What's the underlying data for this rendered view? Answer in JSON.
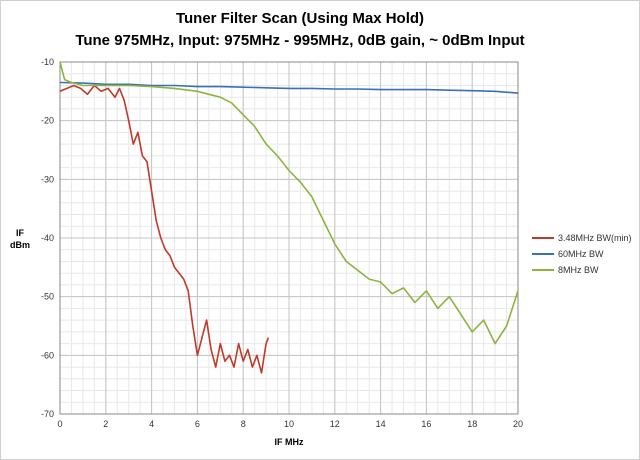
{
  "chart_data": {
    "type": "line",
    "title": "Tuner Filter Scan (Using Max Hold)",
    "subtitle": "Tune 975MHz, Input: 975MHz - 995MHz, 0dB gain, ~ 0dBm Input",
    "xlabel": "IF MHz",
    "ylabel_line1": "IF",
    "ylabel_line2": "dBm",
    "xlim": [
      0,
      20
    ],
    "ylim": [
      -70,
      -10
    ],
    "x_ticks": [
      0,
      2,
      4,
      6,
      8,
      10,
      12,
      14,
      16,
      18,
      20
    ],
    "y_ticks": [
      -10,
      -20,
      -30,
      -40,
      -50,
      -60,
      -70
    ],
    "grid": true,
    "legend_position": "right",
    "series": [
      {
        "name": "3.48MHz BW(min)",
        "color": "#c0392b",
        "x": [
          0,
          0.3,
          0.6,
          0.9,
          1.2,
          1.5,
          1.8,
          2.1,
          2.4,
          2.6,
          2.8,
          3.0,
          3.2,
          3.4,
          3.6,
          3.8,
          4.0,
          4.2,
          4.4,
          4.6,
          4.8,
          5.0,
          5.2,
          5.4,
          5.6,
          5.8,
          6.0,
          6.2,
          6.4,
          6.6,
          6.8,
          7.0,
          7.2,
          7.4,
          7.6,
          7.8,
          8.0,
          8.2,
          8.4,
          8.6,
          8.8,
          9.0,
          9.1
        ],
        "y": [
          -15,
          -14.5,
          -14,
          -14.5,
          -15.5,
          -14,
          -15,
          -14.5,
          -16,
          -14.5,
          -16.5,
          -20,
          -24,
          -22,
          -26,
          -27,
          -32,
          -37,
          -40,
          -42,
          -43,
          -45,
          -46,
          -47,
          -49,
          -55,
          -60,
          -57,
          -54,
          -59,
          -62,
          -58,
          -61,
          -60,
          -62,
          -58,
          -61,
          -59,
          -62,
          -60,
          -63,
          -58,
          -57
        ]
      },
      {
        "name": "60MHz BW",
        "color": "#3a70b8",
        "x": [
          0,
          1,
          2,
          3,
          4,
          5,
          6,
          7,
          8,
          9,
          10,
          11,
          12,
          13,
          14,
          15,
          16,
          17,
          18,
          19,
          20
        ],
        "y": [
          -13.5,
          -13.6,
          -13.8,
          -13.8,
          -14,
          -14,
          -14.2,
          -14.2,
          -14.3,
          -14.4,
          -14.5,
          -14.5,
          -14.6,
          -14.6,
          -14.7,
          -14.7,
          -14.7,
          -14.8,
          -14.9,
          -15,
          -15.3
        ]
      },
      {
        "name": "8MHz BW",
        "color": "#8db43e",
        "x": [
          0,
          0.2,
          0.5,
          1,
          2,
          3,
          4,
          5,
          6,
          6.5,
          7,
          7.5,
          8,
          8.5,
          9,
          9.5,
          10,
          10.5,
          11,
          11.5,
          12,
          12.5,
          13,
          13.5,
          14,
          14.5,
          15,
          15.5,
          16,
          16.5,
          17,
          17.5,
          18,
          18.5,
          19,
          19.5,
          20
        ],
        "y": [
          -10,
          -13,
          -13.5,
          -14,
          -14,
          -14,
          -14.2,
          -14.5,
          -15,
          -15.5,
          -16,
          -17,
          -19,
          -21,
          -24,
          -26,
          -28.5,
          -30.5,
          -33,
          -37,
          -41,
          -44,
          -45.5,
          -47,
          -47.5,
          -49.5,
          -48.5,
          -51,
          -49,
          -52,
          -50,
          -53,
          -56,
          -54,
          -58,
          -55,
          -49
        ]
      }
    ]
  }
}
